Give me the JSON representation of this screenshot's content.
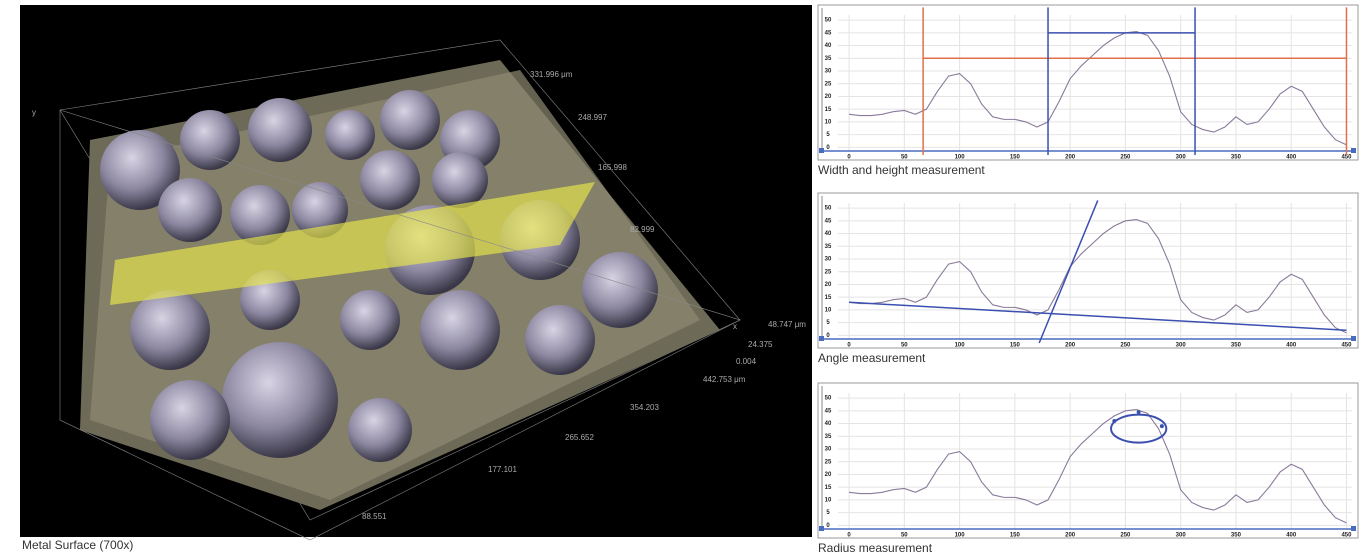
{
  "surface": {
    "caption": "Metal Surface (700x)",
    "labels": [
      "331.996 μm",
      "248.997",
      "165.998",
      "82.999",
      "48.747 μm",
      "24.375",
      "0.004",
      "442.753 μm",
      "354.203",
      "265.652",
      "177.101",
      "88.551",
      "y",
      "x"
    ]
  },
  "chart_data": [
    {
      "type": "line",
      "title": "Width and height measurement",
      "x": [
        0,
        10,
        20,
        30,
        40,
        50,
        60,
        70,
        80,
        90,
        100,
        110,
        120,
        130,
        140,
        150,
        160,
        170,
        180,
        190,
        200,
        210,
        220,
        230,
        240,
        250,
        260,
        270,
        280,
        290,
        300,
        310,
        320,
        330,
        340,
        350,
        360,
        370,
        380,
        390,
        400,
        410,
        420,
        430,
        440,
        450
      ],
      "series": [
        {
          "color": "#8a7a9a",
          "values": [
            13,
            12.5,
            12.5,
            13,
            14,
            14.5,
            13,
            15,
            22,
            28,
            29,
            25,
            17,
            12,
            11,
            11,
            10,
            8,
            10,
            18,
            27,
            32,
            36,
            40,
            43,
            45,
            45.5,
            44,
            38,
            28,
            14,
            9,
            7,
            6,
            8,
            12,
            9,
            10,
            15,
            21,
            24,
            22,
            15,
            8,
            3,
            1
          ]
        }
      ],
      "xlim": [
        -10,
        455
      ],
      "ylim": [
        -3,
        52
      ],
      "xticks": [
        0,
        50,
        100,
        150,
        200,
        250,
        300,
        350,
        400,
        450
      ],
      "yticks": [
        0,
        5,
        10,
        15,
        20,
        25,
        30,
        35,
        40,
        45,
        50
      ],
      "grid": true,
      "guides": [
        {
          "x": [
            67,
            67
          ],
          "y": [
            -3,
            55
          ],
          "color": "#e0704a"
        },
        {
          "x": [
            450,
            450
          ],
          "y": [
            -3,
            55
          ],
          "color": "#e0704a"
        },
        {
          "x": [
            67,
            450
          ],
          "y": [
            35,
            35
          ],
          "color": "#e0704a"
        },
        {
          "x": [
            180,
            180
          ],
          "y": [
            -3,
            55
          ],
          "color": "#3a4fb0"
        },
        {
          "x": [
            313,
            313
          ],
          "y": [
            -3,
            55
          ],
          "color": "#3a4fb0"
        },
        {
          "x": [
            180,
            313
          ],
          "y": [
            45,
            45
          ],
          "color": "#3a4fb0"
        }
      ]
    },
    {
      "type": "line",
      "title": "Angle measurement",
      "x": [
        0,
        10,
        20,
        30,
        40,
        50,
        60,
        70,
        80,
        90,
        100,
        110,
        120,
        130,
        140,
        150,
        160,
        170,
        180,
        190,
        200,
        210,
        220,
        230,
        240,
        250,
        260,
        270,
        280,
        290,
        300,
        310,
        320,
        330,
        340,
        350,
        360,
        370,
        380,
        390,
        400,
        410,
        420,
        430,
        440,
        450
      ],
      "series": [
        {
          "color": "#8a7a9a",
          "values": [
            13,
            12.5,
            12.5,
            13,
            14,
            14.5,
            13,
            15,
            22,
            28,
            29,
            25,
            17,
            12,
            11,
            11,
            10,
            8,
            10,
            18,
            27,
            32,
            36,
            40,
            43,
            45,
            45.5,
            44,
            38,
            28,
            14,
            9,
            7,
            6,
            8,
            12,
            9,
            10,
            15,
            21,
            24,
            22,
            15,
            8,
            3,
            1
          ]
        }
      ],
      "xlim": [
        -10,
        455
      ],
      "ylim": [
        -3,
        52
      ],
      "xticks": [
        0,
        50,
        100,
        150,
        200,
        250,
        300,
        350,
        400,
        450
      ],
      "yticks": [
        0,
        5,
        10,
        15,
        20,
        25,
        30,
        35,
        40,
        45,
        50
      ],
      "grid": true,
      "guides": [
        {
          "x": [
            0,
            450
          ],
          "y": [
            13,
            2
          ],
          "color": "#3a4fb0"
        },
        {
          "x": [
            172,
            225
          ],
          "y": [
            -3,
            53
          ],
          "color": "#3a4fb0"
        }
      ]
    },
    {
      "type": "line",
      "title": "Radius measurement",
      "x": [
        0,
        10,
        20,
        30,
        40,
        50,
        60,
        70,
        80,
        90,
        100,
        110,
        120,
        130,
        140,
        150,
        160,
        170,
        180,
        190,
        200,
        210,
        220,
        230,
        240,
        250,
        260,
        270,
        280,
        290,
        300,
        310,
        320,
        330,
        340,
        350,
        360,
        370,
        380,
        390,
        400,
        410,
        420,
        430,
        440,
        450
      ],
      "series": [
        {
          "color": "#8a7a9a",
          "values": [
            13,
            12.5,
            12.5,
            13,
            14,
            14.5,
            13,
            15,
            22,
            28,
            29,
            25,
            17,
            12,
            11,
            11,
            10,
            8,
            10,
            18,
            27,
            32,
            36,
            40,
            43,
            45,
            45.5,
            44,
            38,
            28,
            14,
            9,
            7,
            6,
            8,
            12,
            9,
            10,
            15,
            21,
            24,
            22,
            15,
            8,
            3,
            1
          ]
        }
      ],
      "xlim": [
        -10,
        455
      ],
      "ylim": [
        -3,
        52
      ],
      "xticks": [
        0,
        50,
        100,
        150,
        200,
        250,
        300,
        350,
        400,
        450
      ],
      "yticks": [
        0,
        5,
        10,
        15,
        20,
        25,
        30,
        35,
        40,
        45,
        50
      ],
      "grid": true,
      "ellipse": {
        "center": [
          262,
          38
        ],
        "rx": 25,
        "ry": 5.5,
        "color": "#3a4fb0"
      },
      "points": {
        "x": [
          240,
          262,
          283
        ],
        "y": [
          41,
          44.5,
          39
        ],
        "color": "#3a4fb0"
      }
    }
  ]
}
